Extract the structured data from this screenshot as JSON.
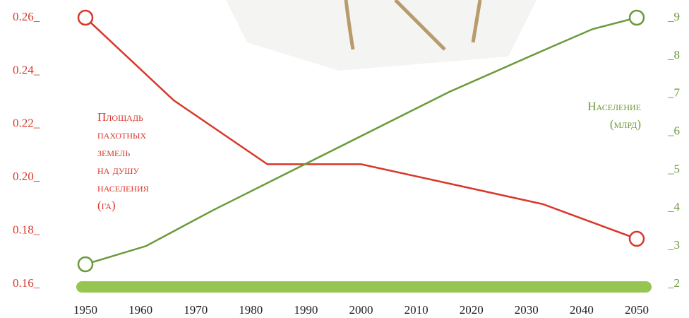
{
  "chart_data": {
    "type": "line",
    "xlim": [
      1950,
      2050
    ],
    "xticks": [
      1950,
      1960,
      1970,
      1980,
      1990,
      2000,
      2010,
      2020,
      2030,
      2040,
      2050
    ],
    "ylim": [
      0.16,
      0.26
    ],
    "yticks": [
      {
        "value": 0.16,
        "label": "0.16_"
      },
      {
        "value": 0.18,
        "label": "0.18_"
      },
      {
        "value": 0.2,
        "label": "0.20_"
      },
      {
        "value": 0.22,
        "label": "0.22_"
      },
      {
        "value": 0.24,
        "label": "0.24_"
      },
      {
        "value": 0.26,
        "label": "0.26_"
      }
    ],
    "y2lim": [
      2,
      9
    ],
    "y2ticks": [
      {
        "value": 2,
        "label": "_2"
      },
      {
        "value": 3,
        "label": "_3"
      },
      {
        "value": 4,
        "label": "_4"
      },
      {
        "value": 5,
        "label": "_5"
      },
      {
        "value": 6,
        "label": "_6"
      },
      {
        "value": 7,
        "label": "_7"
      },
      {
        "value": 8,
        "label": "_8"
      },
      {
        "value": 9,
        "label": "_9"
      }
    ],
    "series": [
      {
        "name": [
          "Площадь",
          "пахотных",
          "земель",
          "на душу",
          "населения",
          "(га)"
        ],
        "color": "#d8382a",
        "axis": "y",
        "x": [
          1950,
          1966,
          1983,
          2000,
          2033,
          2050
        ],
        "values": [
          0.26,
          0.229,
          0.205,
          0.205,
          0.19,
          0.177
        ]
      },
      {
        "name": [
          "Население",
          "(млрд)"
        ],
        "color": "#6a9a3a",
        "axis": "y2",
        "x": [
          1950,
          1961,
          1973,
          2016,
          2034,
          2042,
          2050
        ],
        "values": [
          2.52,
          3.0,
          3.93,
          7.05,
          8.2,
          8.7,
          9.0
        ]
      }
    ]
  }
}
